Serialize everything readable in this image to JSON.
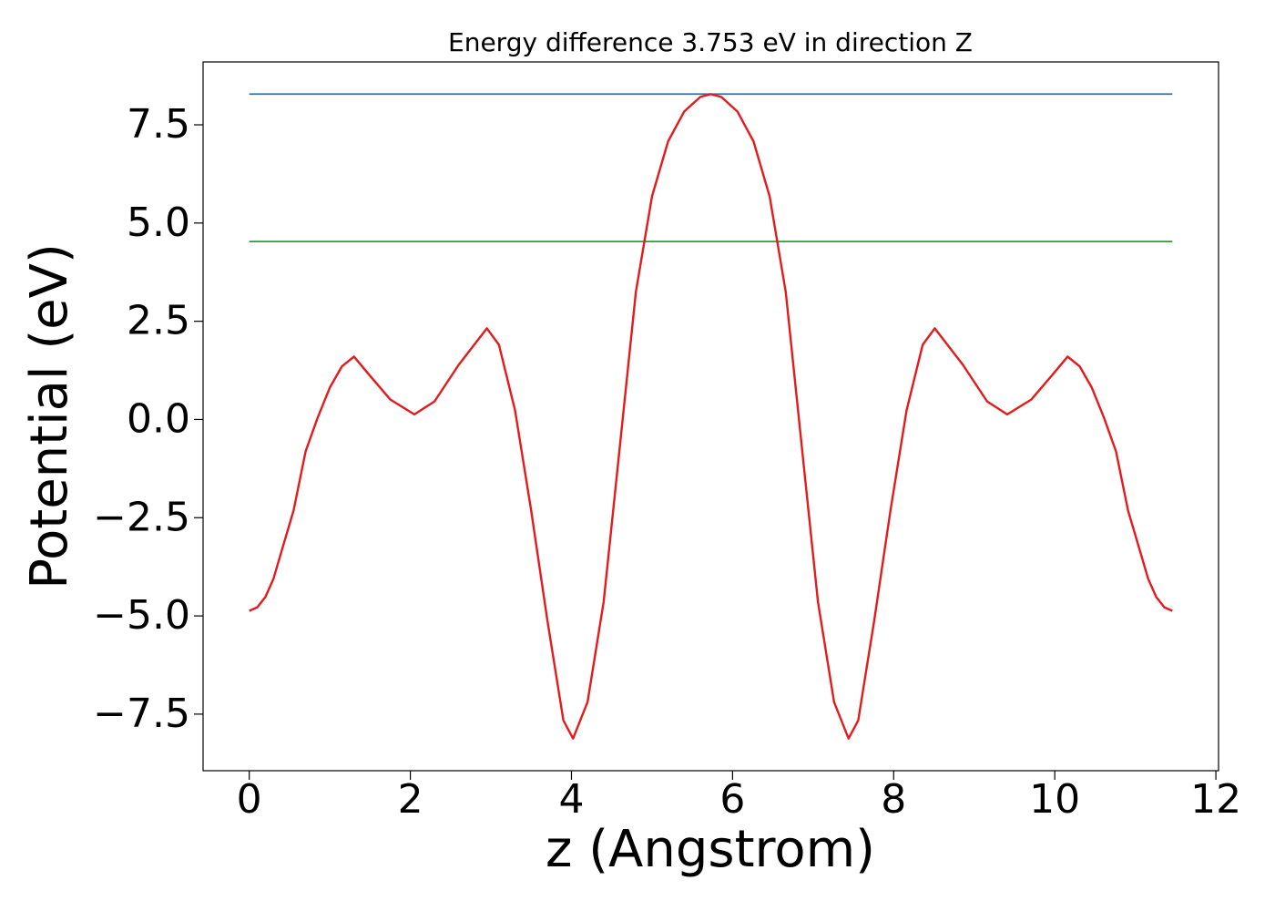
{
  "chart_data": {
    "type": "line",
    "title": "Energy difference 3.753 eV in direction Z",
    "x_label": "z (Angstrom)",
    "y_label": "Potential (eV)",
    "xlim": [
      -0.573,
      12.033
    ],
    "ylim": [
      -8.94,
      9.1
    ],
    "xticks": [
      0,
      2,
      4,
      6,
      8,
      10,
      12
    ],
    "yticks": [
      {
        "value": -7.5,
        "label": "−7.5"
      },
      {
        "value": -5,
        "label": "−5.0"
      },
      {
        "value": -2.5,
        "label": "−2.5"
      },
      {
        "value": 0,
        "label": "0.0"
      },
      2.5,
      {
        "value": 5,
        "label": "5.0"
      },
      7.5
    ],
    "grid": false,
    "series": [
      {
        "color": "#1f77b4",
        "x": [
          0,
          11.46
        ],
        "values": [
          8.283,
          8.283
        ]
      },
      {
        "color": "#2ca02c",
        "x": [
          0,
          11.46
        ],
        "values": [
          4.53,
          4.53
        ]
      },
      {
        "color": "#e41a1c",
        "x": [
          0,
          0.1,
          0.2,
          0.3,
          0.4,
          0.55,
          0.7,
          0.85,
          1.0,
          1.15,
          1.3,
          1.5,
          1.75,
          2.05,
          2.3,
          2.6,
          2.95,
          3.1,
          3.3,
          3.5,
          3.7,
          3.9,
          4.02,
          4.2,
          4.4,
          4.6,
          4.8,
          5.0,
          5.2,
          5.4,
          5.6,
          5.73,
          5.86,
          6.06,
          6.26,
          6.46,
          6.66,
          6.86,
          7.06,
          7.26,
          7.44,
          7.56,
          7.76,
          7.96,
          8.16,
          8.36,
          8.51,
          8.86,
          9.16,
          9.41,
          9.71,
          9.96,
          10.16,
          10.31,
          10.46,
          10.61,
          10.76,
          10.91,
          11.06,
          11.16,
          11.26,
          11.36,
          11.46
        ],
        "values": [
          -4.87,
          -4.78,
          -4.52,
          -4.06,
          -3.36,
          -2.32,
          -0.81,
          0.05,
          0.81,
          1.35,
          1.6,
          1.11,
          0.51,
          0.13,
          0.46,
          1.39,
          2.32,
          1.9,
          0.23,
          -2.32,
          -5.1,
          -7.66,
          -8.12,
          -7.19,
          -4.64,
          -0.7,
          3.25,
          5.68,
          7.08,
          7.84,
          8.21,
          8.28,
          8.21,
          7.84,
          7.08,
          5.68,
          3.25,
          -0.7,
          -4.64,
          -7.19,
          -8.12,
          -7.66,
          -5.1,
          -2.32,
          0.23,
          1.9,
          2.32,
          1.39,
          0.46,
          0.13,
          0.51,
          1.11,
          1.6,
          1.35,
          0.81,
          0.05,
          -0.81,
          -2.32,
          -3.36,
          -4.06,
          -4.52,
          -4.78,
          -4.87
        ]
      }
    ]
  }
}
